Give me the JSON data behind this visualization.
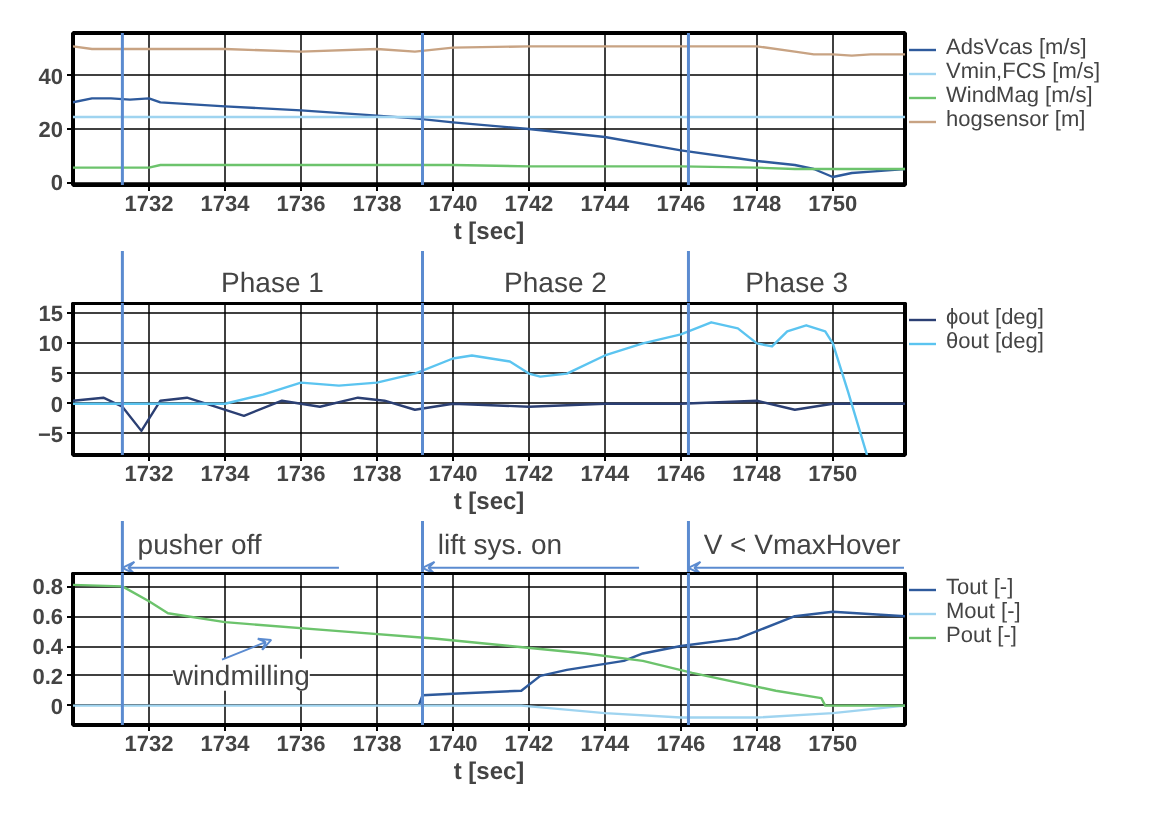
{
  "chart_data": [
    {
      "type": "line",
      "xlabel": "t [sec]",
      "xlim": [
        1730,
        1751.9
      ],
      "ylim": [
        -1,
        56
      ],
      "xticks": [
        1732,
        1734,
        1736,
        1738,
        1740,
        1742,
        1744,
        1746,
        1748,
        1750
      ],
      "yticks": [
        0,
        20,
        40
      ],
      "grid": true,
      "legend": "right",
      "x": [
        1730,
        1730.5,
        1731,
        1731.5,
        1732,
        1732.3,
        1734,
        1736,
        1738,
        1739,
        1740,
        1742,
        1744,
        1746,
        1748,
        1749,
        1749.5,
        1750,
        1750.5,
        1751,
        1751.9
      ],
      "series": [
        {
          "name": "AdsVcas [m/s]",
          "color": "#2e5a9c",
          "values": [
            30,
            31.5,
            31.5,
            31,
            31.5,
            30,
            28.5,
            27,
            25,
            24,
            22.5,
            20,
            17,
            12,
            8,
            6.5,
            5,
            2,
            3.5,
            4,
            5
          ]
        },
        {
          "name": "Vmin,FCS [m/s]",
          "color": "#9fd4f0",
          "values": [
            24.5,
            24.5,
            24.5,
            24.5,
            24.5,
            24.5,
            24.5,
            24.5,
            24.5,
            24.5,
            24.5,
            24.5,
            24.5,
            24.5,
            24.5,
            24.5,
            24.5,
            24.5,
            24.5,
            24.5,
            24.5
          ]
        },
        {
          "name": "WindMag [m/s]",
          "color": "#6cc36c",
          "values": [
            5.5,
            5.5,
            5.5,
            5.5,
            5.5,
            6.5,
            6.5,
            6.5,
            6.5,
            6.5,
            6.5,
            6,
            6,
            6,
            5.5,
            5,
            5,
            5,
            5,
            5,
            5
          ]
        },
        {
          "name": "hogsensor [m]",
          "color": "#c8a383",
          "values": [
            51,
            50,
            50,
            50,
            50,
            50,
            50,
            49,
            50,
            49,
            50.5,
            51,
            51,
            51,
            51,
            49,
            48,
            48,
            47.5,
            48,
            48
          ]
        }
      ],
      "ref_lines": [
        {
          "axis": "x",
          "value": 1731.3,
          "color": "#5b8bd0"
        },
        {
          "axis": "x",
          "value": 1739.2,
          "color": "#5b8bd0"
        },
        {
          "axis": "x",
          "value": 1746.2,
          "color": "#5b8bd0"
        }
      ]
    },
    {
      "type": "line",
      "xlabel": "t [sec]",
      "xlim": [
        1730,
        1751.9
      ],
      "ylim": [
        -8.5,
        16.7
      ],
      "xticks": [
        1732,
        1734,
        1736,
        1738,
        1740,
        1742,
        1744,
        1746,
        1748,
        1750
      ],
      "yticks": [
        -5,
        0,
        5,
        10,
        15
      ],
      "grid": true,
      "legend": "right",
      "annotations": [
        "Phase 1",
        "Phase 2",
        "Phase 3"
      ],
      "series": [
        {
          "name": "ϕout [deg]",
          "color": "#2b3f73",
          "x": [
            1730,
            1730.8,
            1731.3,
            1731.8,
            1732.3,
            1733,
            1733.5,
            1734.5,
            1735.5,
            1736.5,
            1737.5,
            1738.2,
            1739,
            1740,
            1742,
            1744,
            1746,
            1748,
            1749,
            1750,
            1751.9
          ],
          "values": [
            0.5,
            1,
            -0.5,
            -4.5,
            0.5,
            1,
            0,
            -2,
            0.5,
            -0.5,
            1,
            0.5,
            -1,
            0,
            -0.5,
            0,
            0,
            0.5,
            -1,
            0,
            0
          ]
        },
        {
          "name": "θout [deg]",
          "color": "#5bc4f0",
          "x": [
            1730,
            1734,
            1735,
            1736,
            1737,
            1738,
            1739,
            1740,
            1740.5,
            1741.5,
            1742,
            1742.3,
            1743,
            1744,
            1745,
            1746,
            1746.8,
            1747.5,
            1748,
            1748.4,
            1748.8,
            1749.3,
            1749.8,
            1750,
            1750.4,
            1750.9
          ],
          "values": [
            0,
            0,
            1.5,
            3.5,
            3,
            3.5,
            5,
            7.5,
            8,
            7,
            5,
            4.5,
            5,
            8,
            10,
            11.5,
            13.5,
            12.5,
            10,
            9.5,
            12,
            13,
            12,
            10,
            2,
            -8.5
          ]
        }
      ],
      "ref_lines": [
        {
          "axis": "x",
          "value": 1731.3,
          "color": "#5b8bd0"
        },
        {
          "axis": "x",
          "value": 1739.2,
          "color": "#5b8bd0"
        },
        {
          "axis": "x",
          "value": 1746.2,
          "color": "#5b8bd0"
        }
      ]
    },
    {
      "type": "line",
      "xlabel": "t [sec]",
      "xlim": [
        1730,
        1751.9
      ],
      "ylim": [
        -0.13,
        0.89
      ],
      "xticks": [
        1732,
        1734,
        1736,
        1738,
        1740,
        1742,
        1744,
        1746,
        1748,
        1750
      ],
      "yticks": [
        0,
        0.2,
        0.4,
        0.6,
        0.8
      ],
      "grid": true,
      "legend": "right",
      "annotations": [
        "pusher off",
        "lift sys. on",
        "V < VmaxHover",
        "windmilling"
      ],
      "series": [
        {
          "name": "Tout [-]",
          "color": "#2e5a9c",
          "x": [
            1739.1,
            1739.2,
            1740,
            1741.8,
            1742.3,
            1743,
            1744.5,
            1745,
            1746,
            1747.5,
            1748,
            1749,
            1750,
            1751.9
          ],
          "values": [
            0,
            0.07,
            0.08,
            0.1,
            0.2,
            0.24,
            0.3,
            0.35,
            0.4,
            0.45,
            0.5,
            0.6,
            0.63,
            0.6
          ]
        },
        {
          "name": "Mout [-]",
          "color": "#9fd4f0",
          "x": [
            1730,
            1741.8,
            1744,
            1746,
            1748,
            1750,
            1751.9
          ],
          "values": [
            0,
            0,
            -0.05,
            -0.08,
            -0.08,
            -0.05,
            0
          ]
        },
        {
          "name": "Pout [-]",
          "color": "#6cc36c",
          "x": [
            1730,
            1731.3,
            1732,
            1732.5,
            1734,
            1737,
            1739.5,
            1741.5,
            1743.5,
            1745,
            1746.3,
            1748.5,
            1749.7,
            1749.8,
            1751.9
          ],
          "values": [
            0.81,
            0.8,
            0.7,
            0.62,
            0.56,
            0.5,
            0.45,
            0.4,
            0.35,
            0.3,
            0.22,
            0.1,
            0.05,
            0,
            0
          ]
        }
      ],
      "ref_lines": [
        {
          "axis": "x",
          "value": 1731.3,
          "color": "#5b8bd0"
        },
        {
          "axis": "x",
          "value": 1739.2,
          "color": "#5b8bd0"
        },
        {
          "axis": "x",
          "value": 1746.2,
          "color": "#5b8bd0"
        }
      ]
    }
  ]
}
